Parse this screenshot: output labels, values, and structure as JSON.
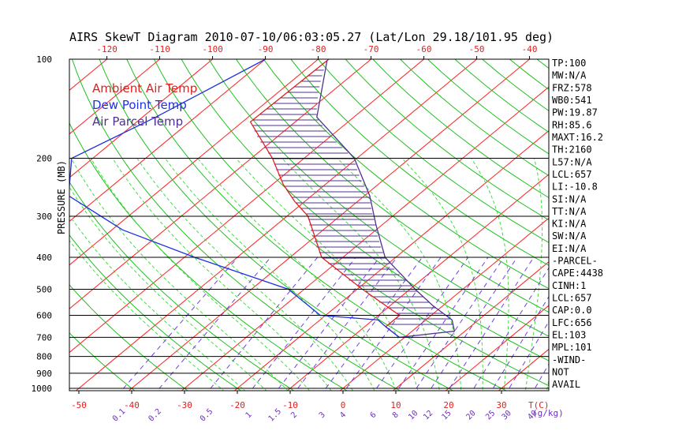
{
  "chart_data": {
    "type": "line",
    "title": "AIRS SkewT Diagram 2010-07-10/06:03:05.27 (Lat/Lon 29.18/101.95 deg)",
    "ylabel": "PRESSURE (MB)",
    "top_temp_ticks": [
      "-120",
      "-110",
      "-100",
      "-90",
      "-80",
      "-70",
      "-60",
      "-50",
      "-40"
    ],
    "top_temp_values": [
      -120,
      -110,
      -100,
      -90,
      -80,
      -70,
      -60,
      -50,
      -40
    ],
    "bottom_temp_ticks": [
      "-50",
      "-40",
      "-30",
      "-20",
      "-10",
      "0",
      "10",
      "20",
      "30"
    ],
    "bottom_temp_values": [
      -50,
      -40,
      -30,
      -20,
      -10,
      0,
      10,
      20,
      30
    ],
    "bottom_unit": "T(C)",
    "mixing_ratio_ticks": [
      "0.1",
      "0.2",
      "0.5",
      "1",
      "1.5",
      "2",
      "3",
      "4",
      "6",
      "8",
      "10",
      "12",
      "15",
      "20",
      "25",
      "30",
      "40"
    ],
    "mixing_ratio_unit": "(g/kg)",
    "pressure_ticks": [
      {
        "label": "100",
        "p": 100
      },
      {
        "label": "200",
        "p": 200
      },
      {
        "label": "300",
        "p": 300
      },
      {
        "label": "400",
        "p": 400
      },
      {
        "label": "500",
        "p": 500
      },
      {
        "label": "600",
        "p": 600
      },
      {
        "label": "700",
        "p": 700
      },
      {
        "label": "800",
        "p": 800
      },
      {
        "label": "900",
        "p": 900
      },
      {
        "label": "1000",
        "p": 1000
      }
    ],
    "legend": [
      {
        "name": "Ambient Air Temp",
        "color": "#e02020"
      },
      {
        "name": "Dew Point Temp",
        "color": "#2030e0"
      },
      {
        "name": "Air Parcel Temp",
        "color": "#503090"
      }
    ],
    "series": [
      {
        "name": "Ambient Air Temp",
        "color": "#e02020",
        "points": [
          [
            100,
            -78
          ],
          [
            155,
            -78.5
          ],
          [
            200,
            -66
          ],
          [
            240,
            -58
          ],
          [
            270,
            -52
          ],
          [
            300,
            -46
          ],
          [
            400,
            -34
          ],
          [
            500,
            -19
          ],
          [
            600,
            -6
          ],
          [
            650,
            -6
          ],
          [
            700,
            -1
          ]
        ]
      },
      {
        "name": "Dew Point Temp",
        "color": "#2030e0",
        "points": [
          [
            100,
            -90
          ],
          [
            150,
            -97.5
          ],
          [
            200,
            -104
          ],
          [
            260,
            -96
          ],
          [
            330,
            -78
          ],
          [
            400,
            -58
          ],
          [
            500,
            -33
          ],
          [
            600,
            -21
          ],
          [
            620,
            -9
          ],
          [
            650,
            -6
          ],
          [
            700,
            -1
          ]
        ]
      },
      {
        "name": "Air Parcel Temp",
        "color": "#503090",
        "points": [
          [
            101,
            -78
          ],
          [
            150,
            -67
          ],
          [
            200,
            -50.5
          ],
          [
            260,
            -39
          ],
          [
            320,
            -31
          ],
          [
            400,
            -22
          ],
          [
            500,
            -9
          ],
          [
            560,
            -2
          ],
          [
            620,
            5
          ],
          [
            670,
            8
          ],
          [
            700,
            -1
          ]
        ]
      }
    ]
  },
  "indices": [
    "TP:100",
    "MW:N/A",
    "FRZ:578",
    "WB0:541",
    "PW:19.87",
    "RH:85.6",
    "MAXT:16.2",
    "TH:2160",
    "L57:N/A",
    "LCL:657",
    "LI:-10.8",
    "SI:N/A",
    "TT:N/A",
    "KI:N/A",
    "SW:N/A",
    "EI:N/A",
    "-PARCEL-",
    "CAPE:4438",
    "CINH:1",
    "LCL:657",
    "CAP:0.0",
    "LFC:656",
    "EL:103",
    "MPL:101",
    "-WIND-",
    "NOT",
    "AVAIL"
  ],
  "colors": {
    "isotherm": "#ff2020",
    "dry_adiabat": "#20c020",
    "moist_adiabat": "#40dd40",
    "mixing_ratio": "#7040e0",
    "isobar": "#000000",
    "tick_label": "#e02020",
    "mr_label": "#7030c0"
  }
}
